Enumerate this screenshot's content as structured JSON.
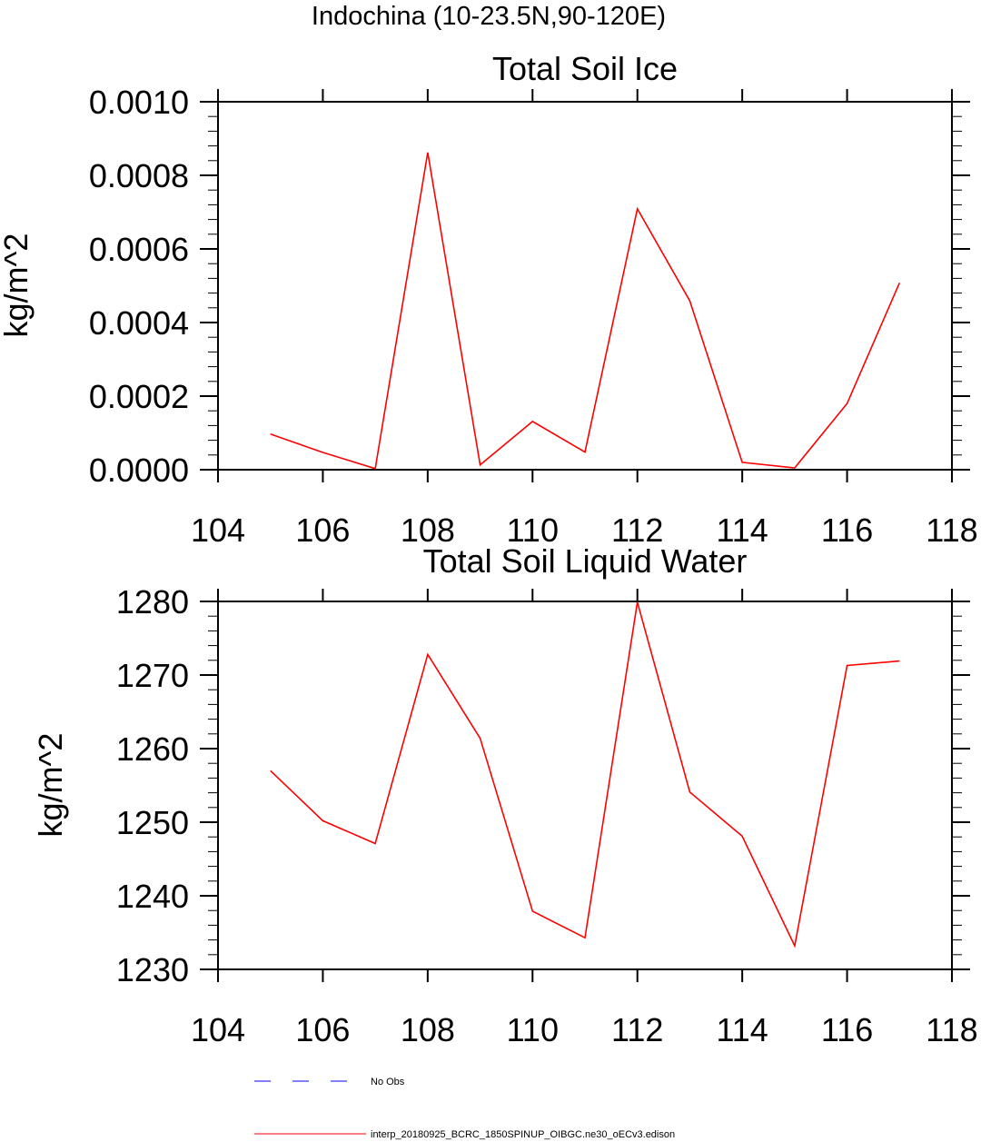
{
  "figure": {
    "title": "Indochina (10-23.5N,90-120E)"
  },
  "chart_data": [
    {
      "type": "line",
      "title": "Total Soil Ice",
      "ylabel": "kg/m^2",
      "xlabel": "",
      "xlim": [
        104,
        118
      ],
      "ylim": [
        0,
        0.001
      ],
      "xticks": [
        104,
        106,
        108,
        110,
        112,
        114,
        116,
        118
      ],
      "yticks": [
        0,
        0.0002,
        0.0004,
        0.0006,
        0.0008,
        0.001
      ],
      "ytick_labels": [
        "0.0000",
        "0.0002",
        "0.0004",
        "0.0006",
        "0.0008",
        "0.0010"
      ],
      "series": [
        {
          "color": "#ff0000",
          "x": [
            105,
            106,
            107,
            108,
            109,
            110,
            111,
            112,
            113,
            114,
            115,
            116,
            117
          ],
          "y": [
            9.7e-05,
            4.7e-05,
            3e-06,
            0.000862,
            1.3e-05,
            0.000131,
            4.8e-05,
            0.000709,
            0.000459,
            2e-05,
            5e-06,
            0.00018,
            0.000508
          ]
        }
      ]
    },
    {
      "type": "line",
      "title": "Total Soil Liquid Water",
      "ylabel": "kg/m^2",
      "xlabel": "",
      "xlim": [
        104,
        118
      ],
      "ylim": [
        1230,
        1280
      ],
      "xticks": [
        104,
        106,
        108,
        110,
        112,
        114,
        116,
        118
      ],
      "yticks": [
        1230,
        1240,
        1250,
        1260,
        1270,
        1280
      ],
      "ytick_labels": [
        "1230",
        "1240",
        "1250",
        "1260",
        "1270",
        "1280"
      ],
      "series": [
        {
          "color": "#ff0000",
          "x": [
            105,
            106,
            107,
            108,
            109,
            110,
            111,
            112,
            113,
            114,
            115,
            116,
            117
          ],
          "y": [
            1257.0,
            1250.2,
            1247.1,
            1272.8,
            1261.4,
            1237.9,
            1234.3,
            1279.9,
            1254.1,
            1248.1,
            1233.2,
            1271.3,
            1271.9
          ]
        }
      ]
    }
  ],
  "legend": [
    {
      "label": "No Obs",
      "color": "#0000ff",
      "style": "dashed"
    },
    {
      "label": "interp_20180925_BCRC_1850SPINUP_OIBGC.ne30_oECv3.edison",
      "color": "#ff0000",
      "style": "solid"
    }
  ]
}
